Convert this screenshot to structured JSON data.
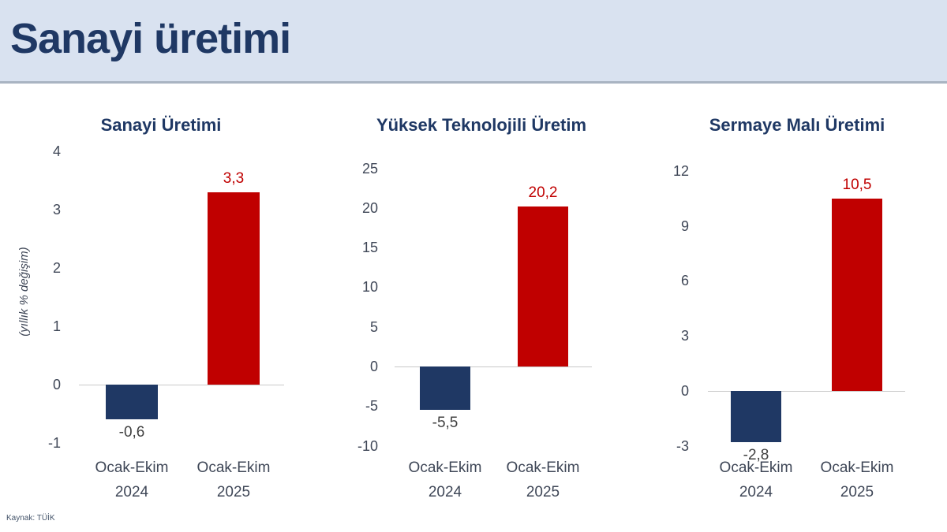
{
  "header": {
    "title": "Sanayi üretimi"
  },
  "source": {
    "label": "Kaynak: TÜİK"
  },
  "colors": {
    "header_bg": "#d9e2f0",
    "title_navy": "#1f3864",
    "bar_navy": "#1f3864",
    "bar_red": "#c00000",
    "value_label_red": "#c00000",
    "value_label_dark": "#404040",
    "tick_text": "#3f4757",
    "axis_line": "#c9c9c9"
  },
  "chart_data": [
    {
      "type": "bar",
      "title": "Sanayi Üretimi",
      "ylabel": "(yıllık % değişim)",
      "categories": [
        [
          "Ocak-Ekim",
          "2024"
        ],
        [
          "Ocak-Ekim",
          "2025"
        ]
      ],
      "values": [
        -0.6,
        3.3
      ],
      "value_labels": [
        "-0,6",
        "3,3"
      ],
      "bar_colors": [
        "#1f3864",
        "#c00000"
      ],
      "yticks": [
        4,
        3,
        2,
        1,
        0,
        -1
      ],
      "ylim": [
        -1,
        4
      ],
      "grid": "zero-line-only",
      "legend": "none"
    },
    {
      "type": "bar",
      "title": "Yüksek Teknolojili Üretim",
      "ylabel": "",
      "categories": [
        [
          "Ocak-Ekim",
          "2024"
        ],
        [
          "Ocak-Ekim",
          "2025"
        ]
      ],
      "values": [
        -5.5,
        20.2
      ],
      "value_labels": [
        "-5,5",
        "20,2"
      ],
      "bar_colors": [
        "#1f3864",
        "#c00000"
      ],
      "yticks": [
        25,
        20,
        15,
        10,
        5,
        0,
        -5,
        -10
      ],
      "ylim": [
        -10,
        25
      ],
      "grid": "zero-line-only",
      "legend": "none"
    },
    {
      "type": "bar",
      "title": "Sermaye Malı Üretimi",
      "ylabel": "",
      "categories": [
        [
          "Ocak-Ekim",
          "2024"
        ],
        [
          "Ocak-Ekim",
          "2025"
        ]
      ],
      "values": [
        -2.8,
        10.5
      ],
      "value_labels": [
        "-2,8",
        "10,5"
      ],
      "bar_colors": [
        "#1f3864",
        "#c00000"
      ],
      "yticks": [
        12,
        9,
        6,
        3,
        0,
        -3
      ],
      "ylim": [
        -3,
        12
      ],
      "grid": "zero-line-only",
      "legend": "none"
    }
  ]
}
